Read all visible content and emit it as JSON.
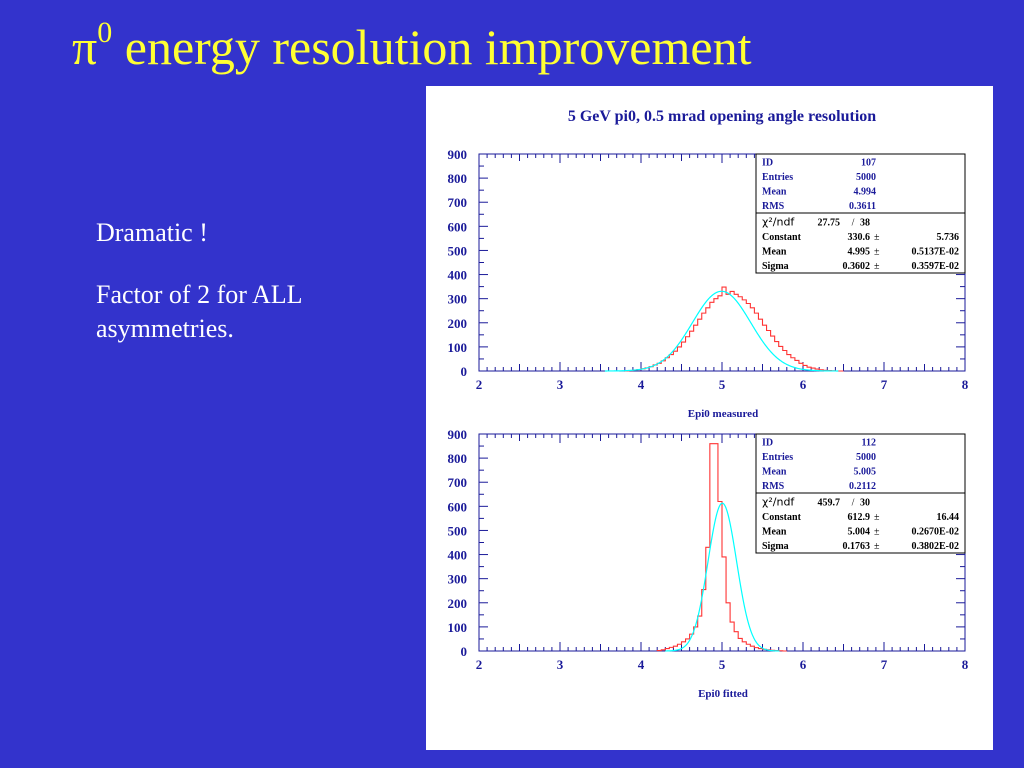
{
  "slide": {
    "title_symbol": "π",
    "title_sup": "0",
    "title_rest": "energy resolution improvement",
    "bullets": [
      "Dramatic !",
      "Factor of 2 for ALL asymmetries."
    ]
  },
  "figure": {
    "title": "5 GeV pi0, 0.5 mrad opening angle resolution"
  },
  "chart_data": [
    {
      "type": "histogram",
      "xlabel": "Epi0 measured",
      "ylabel": "",
      "xlim": [
        2,
        8
      ],
      "ylim": [
        0,
        900
      ],
      "xticks": [
        2,
        3,
        4,
        5,
        6,
        7,
        8
      ],
      "yticks": [
        0,
        100,
        200,
        300,
        400,
        500,
        600,
        700,
        800,
        900
      ],
      "stats": [
        {
          "label": "ID",
          "value": "107"
        },
        {
          "label": "Entries",
          "value": "5000"
        },
        {
          "label": "Mean",
          "value": "4.994"
        },
        {
          "label": "RMS",
          "value": "0.3611"
        }
      ],
      "fit": {
        "chi2_label": "χ²/ndf",
        "chi2": "27.75",
        "ndf": "38",
        "params": [
          {
            "label": "Constant",
            "value": "330.6",
            "error": "5.736"
          },
          {
            "label": "Mean",
            "value": "4.995",
            "error": "0.5137E-02"
          },
          {
            "label": "Sigma",
            "value": "0.3602",
            "error": "0.3597E-02"
          }
        ]
      },
      "bins": {
        "x_start": 3.8,
        "width": 0.05,
        "counts": [
          0,
          2,
          4,
          6,
          9,
          13,
          18,
          25,
          32,
          42,
          55,
          68,
          82,
          100,
          120,
          142,
          165,
          190,
          215,
          240,
          262,
          285,
          300,
          312,
          348,
          318,
          330,
          318,
          308,
          295,
          280,
          262,
          240,
          215,
          190,
          168,
          145,
          122,
          102,
          85,
          68,
          55,
          44,
          32,
          23,
          16,
          12,
          8,
          5,
          3,
          2,
          1,
          0,
          0
        ]
      },
      "gauss": {
        "constant": 330.6,
        "mean": 4.995,
        "sigma": 0.3602
      },
      "colors": {
        "hist": "#ff3333",
        "fit": "#00ffff"
      }
    },
    {
      "type": "histogram",
      "xlabel": "Epi0 fitted",
      "ylabel": "",
      "xlim": [
        2,
        8
      ],
      "ylim": [
        0,
        900
      ],
      "xticks": [
        2,
        3,
        4,
        5,
        6,
        7,
        8
      ],
      "yticks": [
        0,
        100,
        200,
        300,
        400,
        500,
        600,
        700,
        800,
        900
      ],
      "stats": [
        {
          "label": "ID",
          "value": "112"
        },
        {
          "label": "Entries",
          "value": "5000"
        },
        {
          "label": "Mean",
          "value": "5.005"
        },
        {
          "label": "RMS",
          "value": "0.2112"
        }
      ],
      "fit": {
        "chi2_label": "χ²/ndf",
        "chi2": "459.7",
        "ndf": "30",
        "params": [
          {
            "label": "Constant",
            "value": "612.9",
            "error": "16.44"
          },
          {
            "label": "Mean",
            "value": "5.004",
            "error": "0.2670E-02"
          },
          {
            "label": "Sigma",
            "value": "0.1763",
            "error": "0.3802E-02"
          }
        ]
      },
      "bins": {
        "x_start": 4.2,
        "width": 0.05,
        "counts": [
          2,
          5,
          10,
          15,
          20,
          28,
          38,
          50,
          70,
          100,
          145,
          255,
          430,
          860,
          860,
          620,
          390,
          200,
          120,
          80,
          52,
          38,
          28,
          20,
          14,
          10,
          7,
          5,
          3,
          2,
          1,
          0
        ]
      },
      "gauss": {
        "constant": 612.9,
        "mean": 5.004,
        "sigma": 0.1763
      },
      "colors": {
        "hist": "#ff3333",
        "fit": "#00ffff"
      }
    }
  ]
}
